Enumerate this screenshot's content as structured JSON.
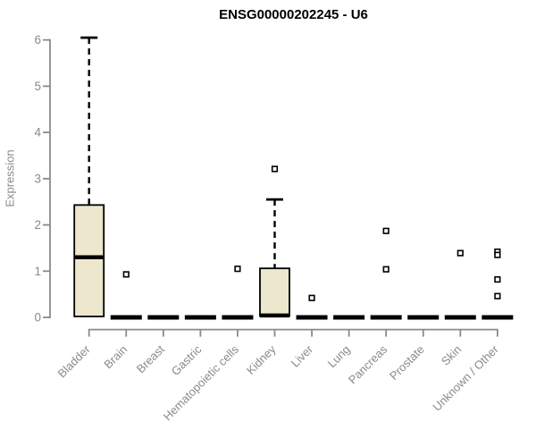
{
  "title": "ENSG00000202245 - U6",
  "colors": {
    "background": "#ffffff",
    "box_fill": "#ECE7CD",
    "box_border": "#000000",
    "median": "#000000",
    "whisker": "#000000",
    "outlier_stroke": "#000000",
    "axis": "#8a8a8a",
    "tick_label": "#8a8a8a",
    "title_color": "#000000"
  },
  "chart_data": {
    "type": "boxplot",
    "title": "ENSG00000202245 - U6",
    "xlabel": "",
    "ylabel": "Expression",
    "ylim": [
      0,
      6.1
    ],
    "yticks": [
      0,
      1,
      2,
      3,
      4,
      5,
      6
    ],
    "grid": false,
    "legend": "none",
    "categories": [
      "Bladder",
      "Brain",
      "Breast",
      "Gastric",
      "Hematopoietic cells",
      "Kidney",
      "Liver",
      "Lung",
      "Pancreas",
      "Prostate",
      "Skin",
      "Unknown / Other"
    ],
    "series": [
      {
        "category": "Bladder",
        "q1": 0.02,
        "median": 1.3,
        "q3": 2.43,
        "whisker_low": 0.02,
        "whisker_high": 6.05,
        "outliers": []
      },
      {
        "category": "Brain",
        "q1": 0,
        "median": 0,
        "q3": 0,
        "whisker_low": 0,
        "whisker_high": 0,
        "outliers": [
          0.93
        ]
      },
      {
        "category": "Breast",
        "q1": 0,
        "median": 0,
        "q3": 0,
        "whisker_low": 0,
        "whisker_high": 0,
        "outliers": []
      },
      {
        "category": "Gastric",
        "q1": 0,
        "median": 0,
        "q3": 0,
        "whisker_low": 0,
        "whisker_high": 0,
        "outliers": []
      },
      {
        "category": "Hematopoietic cells",
        "q1": 0,
        "median": 0,
        "q3": 0,
        "whisker_low": 0,
        "whisker_high": 0,
        "outliers": [
          1.05
        ]
      },
      {
        "category": "Kidney",
        "q1": 0.03,
        "median": 0.04,
        "q3": 1.06,
        "whisker_low": 0.03,
        "whisker_high": 2.55,
        "outliers": [
          3.21
        ]
      },
      {
        "category": "Liver",
        "q1": 0,
        "median": 0,
        "q3": 0,
        "whisker_low": 0,
        "whisker_high": 0,
        "outliers": [
          0.42
        ]
      },
      {
        "category": "Lung",
        "q1": 0,
        "median": 0,
        "q3": 0,
        "whisker_low": 0,
        "whisker_high": 0,
        "outliers": []
      },
      {
        "category": "Pancreas",
        "q1": 0,
        "median": 0,
        "q3": 0,
        "whisker_low": 0,
        "whisker_high": 0,
        "outliers": [
          1.87,
          1.04
        ]
      },
      {
        "category": "Prostate",
        "q1": 0,
        "median": 0,
        "q3": 0,
        "whisker_low": 0,
        "whisker_high": 0,
        "outliers": []
      },
      {
        "category": "Skin",
        "q1": 0,
        "median": 0,
        "q3": 0,
        "whisker_low": 0,
        "whisker_high": 0,
        "outliers": [
          1.39
        ]
      },
      {
        "category": "Unknown / Other",
        "q1": 0,
        "median": 0,
        "q3": 0,
        "whisker_low": 0,
        "whisker_high": 0,
        "outliers": [
          1.42,
          1.35,
          0.82,
          0.46
        ]
      }
    ]
  }
}
